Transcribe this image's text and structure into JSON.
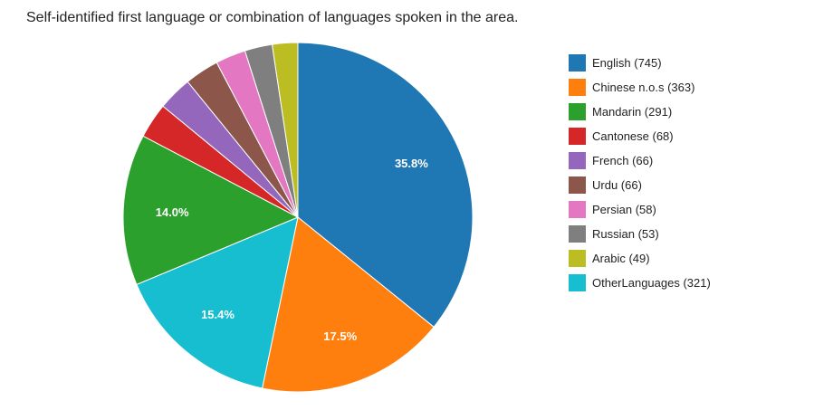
{
  "chart_data": {
    "type": "pie",
    "title": "Self-identified first language or combination of languages spoken in the area.",
    "legend_position": "right",
    "slices": [
      {
        "label": "English (745)",
        "value": 745,
        "color": "#1f77b4",
        "pct_label": "35.8%"
      },
      {
        "label": "Chinese n.o.s (363)",
        "value": 363,
        "color": "#ff7f0e",
        "pct_label": "17.5%"
      },
      {
        "label": "OtherLanguages (321)",
        "value": 321,
        "color": "#17becf",
        "pct_label": "15.4%"
      },
      {
        "label": "Mandarin (291)",
        "value": 291,
        "color": "#2ca02c",
        "pct_label": "14.0%"
      },
      {
        "label": "Cantonese (68)",
        "value": 68,
        "color": "#d62728",
        "pct_label": ""
      },
      {
        "label": "French (66)",
        "value": 66,
        "color": "#9467bd",
        "pct_label": ""
      },
      {
        "label": "Urdu (66)",
        "value": 66,
        "color": "#8c564b",
        "pct_label": ""
      },
      {
        "label": "Persian (58)",
        "value": 58,
        "color": "#e377c2",
        "pct_label": ""
      },
      {
        "label": "Russian (53)",
        "value": 53,
        "color": "#7f7f7f",
        "pct_label": ""
      },
      {
        "label": "Arabic (49)",
        "value": 49,
        "color": "#bcbd22",
        "pct_label": ""
      }
    ],
    "legend": [
      {
        "label": "English (745)",
        "color": "#1f77b4"
      },
      {
        "label": "Chinese n.o.s (363)",
        "color": "#ff7f0e"
      },
      {
        "label": "Mandarin (291)",
        "color": "#2ca02c"
      },
      {
        "label": "Cantonese (68)",
        "color": "#d62728"
      },
      {
        "label": "French (66)",
        "color": "#9467bd"
      },
      {
        "label": "Urdu (66)",
        "color": "#8c564b"
      },
      {
        "label": "Persian (58)",
        "color": "#e377c2"
      },
      {
        "label": "Russian (53)",
        "color": "#7f7f7f"
      },
      {
        "label": "Arabic (49)",
        "color": "#bcbd22"
      },
      {
        "label": "OtherLanguages (321)",
        "color": "#17becf"
      }
    ]
  }
}
